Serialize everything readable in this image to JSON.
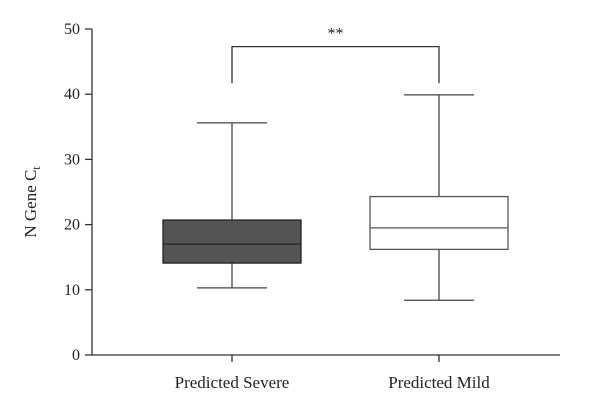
{
  "chart_data": {
    "type": "box",
    "title": "",
    "xlabel": "",
    "ylabel": "N Gene C",
    "ylabel_subscript": "t",
    "ylim": [
      0,
      50
    ],
    "yticks": [
      0,
      10,
      20,
      30,
      40,
      50
    ],
    "grid": false,
    "categories": [
      "Predicted Severe",
      "Predicted Mild"
    ],
    "boxes": [
      {
        "category": "Predicted Severe",
        "min": 10.3,
        "q1": 14.1,
        "median": 17.0,
        "q3": 20.7,
        "max": 35.6,
        "fill": "#555555",
        "stroke": "#222222"
      },
      {
        "category": "Predicted Mild",
        "min": 8.4,
        "q1": 16.2,
        "median": 19.5,
        "q3": 24.3,
        "max": 39.9,
        "fill": "#ffffff",
        "stroke": "#555555"
      }
    ],
    "significance": {
      "label": "**",
      "between": [
        "Predicted Severe",
        "Predicted Mild"
      ],
      "bracket_y": 47.3,
      "bracket_foot_y": 41.7
    }
  }
}
